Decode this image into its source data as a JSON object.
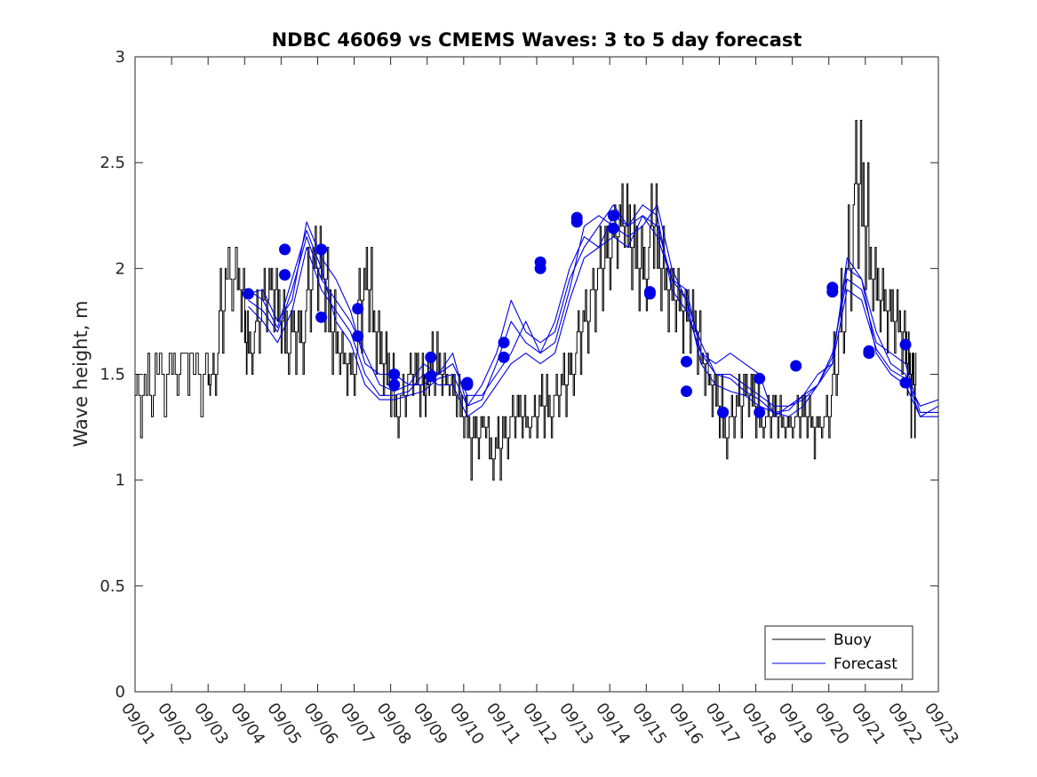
{
  "chart_data": {
    "type": "line",
    "title": "NDBC 46069 vs CMEMS Waves: 3 to 5 day forecast",
    "xlabel": "",
    "ylabel": "Wave height, m",
    "xlim": [
      0,
      22
    ],
    "ylim": [
      0,
      3
    ],
    "yticks": [
      0,
      0.5,
      1,
      1.5,
      2,
      2.5,
      3
    ],
    "yticklabels": [
      "0",
      "0.5",
      "1",
      "1.5",
      "2",
      "2.5",
      "3"
    ],
    "xticks": [
      0,
      1,
      2,
      3,
      4,
      5,
      6,
      7,
      8,
      9,
      10,
      11,
      12,
      13,
      14,
      15,
      16,
      17,
      18,
      19,
      20,
      21,
      22
    ],
    "xticklabels": [
      "09/01",
      "09/02",
      "09/03",
      "09/04",
      "09/05",
      "09/06",
      "09/07",
      "09/08",
      "09/09",
      "09/10",
      "09/11",
      "09/12",
      "09/13",
      "09/14",
      "09/15",
      "09/16",
      "09/17",
      "09/18",
      "09/19",
      "09/20",
      "09/21",
      "09/22",
      "09/23"
    ],
    "legend": {
      "location": "bottom-right",
      "entries": [
        "Buoy",
        "Forecast"
      ]
    },
    "series": [
      {
        "name": "Buoy",
        "color": "#000000",
        "x": [
          0,
          0.3,
          0.6,
          1,
          1.3,
          1.6,
          2,
          2.1,
          2.3,
          2.5,
          2.8,
          3.0,
          3.1,
          3.3,
          3.5,
          3.7,
          3.9,
          4.1,
          4.3,
          4.5,
          4.7,
          4.9,
          5.1,
          5.3,
          5.5,
          5.7,
          5.9,
          6.1,
          6.3,
          6.5,
          6.7,
          6.9,
          7.1,
          7.3,
          7.5,
          7.7,
          7.9,
          8.0,
          8.1,
          8.3,
          8.5,
          8.7,
          8.9,
          9.1,
          9.3,
          9.5,
          9.7,
          9.9,
          10.1,
          10.3,
          10.5,
          10.7,
          10.9,
          11.1,
          11.3,
          11.5,
          11.7,
          11.9,
          12.1,
          12.3,
          12.5,
          12.7,
          12.9,
          13.1,
          13.3,
          13.5,
          13.7,
          13.9,
          14.1,
          14.3,
          14.5,
          14.7,
          14.9,
          15.1,
          15.3,
          15.5,
          15.7,
          15.9,
          16.1,
          16.3,
          16.5,
          16.7,
          16.9,
          17.1,
          17.3,
          17.5,
          17.7,
          17.9,
          18.1,
          18.3,
          18.5,
          18.7,
          18.9,
          19.1,
          19.3,
          19.5,
          19.7,
          19.9,
          20.1,
          20.3,
          20.5,
          20.7,
          20.9,
          21.1,
          21.2,
          21.3
        ],
        "y": [
          1.4,
          1.4,
          1.5,
          1.5,
          1.6,
          1.5,
          1.45,
          1.5,
          1.8,
          1.95,
          1.9,
          1.65,
          1.6,
          1.75,
          1.85,
          1.9,
          1.75,
          1.6,
          1.7,
          1.65,
          1.9,
          2.0,
          1.95,
          1.7,
          1.6,
          1.55,
          1.5,
          1.85,
          1.9,
          1.7,
          1.55,
          1.45,
          1.3,
          1.4,
          1.5,
          1.45,
          1.4,
          1.45,
          1.5,
          1.5,
          1.45,
          1.4,
          1.3,
          1.2,
          1.2,
          1.25,
          1.1,
          1.15,
          1.2,
          1.3,
          1.3,
          1.25,
          1.3,
          1.35,
          1.3,
          1.4,
          1.45,
          1.5,
          1.7,
          1.75,
          1.9,
          2.0,
          2.05,
          2.15,
          2.2,
          2.1,
          2.0,
          1.95,
          2.2,
          2.0,
          1.9,
          1.85,
          1.8,
          1.75,
          1.7,
          1.55,
          1.45,
          1.35,
          1.2,
          1.3,
          1.35,
          1.4,
          1.35,
          1.25,
          1.3,
          1.3,
          1.25,
          1.25,
          1.3,
          1.3,
          1.25,
          1.25,
          1.3,
          1.5,
          1.7,
          2.0,
          2.4,
          2.2,
          1.95,
          1.85,
          1.8,
          1.75,
          1.7,
          1.55,
          1.5,
          1.45
        ],
        "y_min": [
          1.2,
          1.3,
          1.3,
          1.4,
          1.4,
          1.3,
          1.4,
          1.4,
          1.6,
          1.8,
          1.7,
          1.5,
          1.5,
          1.6,
          1.7,
          1.7,
          1.6,
          1.5,
          1.5,
          1.5,
          1.7,
          1.8,
          1.7,
          1.5,
          1.5,
          1.4,
          1.4,
          1.6,
          1.7,
          1.5,
          1.4,
          1.3,
          1.2,
          1.3,
          1.4,
          1.3,
          1.3,
          1.4,
          1.4,
          1.4,
          1.4,
          1.3,
          1.2,
          1.0,
          1.1,
          1.2,
          1.0,
          1.0,
          1.1,
          1.2,
          1.2,
          1.2,
          1.2,
          1.2,
          1.2,
          1.3,
          1.3,
          1.4,
          1.5,
          1.6,
          1.7,
          1.8,
          1.9,
          2.0,
          2.1,
          1.9,
          1.8,
          1.8,
          2.0,
          1.8,
          1.7,
          1.7,
          1.6,
          1.6,
          1.5,
          1.4,
          1.3,
          1.2,
          1.1,
          1.2,
          1.2,
          1.3,
          1.2,
          1.2,
          1.2,
          1.2,
          1.2,
          1.2,
          1.2,
          1.2,
          1.1,
          1.2,
          1.2,
          1.4,
          1.6,
          1.8,
          2.0,
          1.9,
          1.8,
          1.7,
          1.6,
          1.6,
          1.5,
          1.4,
          1.2,
          1.2
        ],
        "y_max": [
          1.5,
          1.6,
          1.6,
          1.6,
          1.6,
          1.6,
          1.5,
          1.6,
          2.0,
          2.1,
          2.0,
          1.8,
          1.7,
          1.9,
          2.0,
          2.0,
          1.9,
          1.8,
          1.8,
          1.8,
          2.1,
          2.2,
          2.1,
          1.9,
          1.7,
          1.6,
          1.6,
          2.0,
          2.1,
          1.8,
          1.7,
          1.6,
          1.4,
          1.5,
          1.6,
          1.6,
          1.5,
          1.6,
          1.7,
          1.6,
          1.5,
          1.5,
          1.4,
          1.3,
          1.3,
          1.3,
          1.2,
          1.3,
          1.3,
          1.4,
          1.4,
          1.3,
          1.4,
          1.5,
          1.4,
          1.5,
          1.6,
          1.6,
          1.8,
          1.9,
          2.0,
          2.2,
          2.2,
          2.3,
          2.4,
          2.3,
          2.2,
          2.1,
          2.4,
          2.2,
          2.0,
          2.0,
          1.9,
          1.9,
          1.8,
          1.6,
          1.5,
          1.5,
          1.3,
          1.4,
          1.5,
          1.5,
          1.5,
          1.3,
          1.4,
          1.4,
          1.3,
          1.3,
          1.4,
          1.4,
          1.3,
          1.3,
          1.4,
          1.7,
          2.0,
          2.3,
          2.7,
          2.5,
          2.1,
          2.0,
          1.9,
          1.9,
          1.8,
          1.7,
          1.6,
          1.6
        ]
      },
      {
        "name": "Forecast",
        "color": "#0000e6",
        "traces": [
          {
            "x": [
              3.1,
              3.5,
              3.9,
              4.3,
              4.7,
              5.1,
              5.5,
              5.9,
              6.3,
              6.7,
              7.1,
              7.5,
              7.9,
              8.3,
              8.7,
              9.1,
              9.5,
              9.9,
              10.3,
              10.7,
              11.1,
              11.5,
              11.9,
              12.3,
              12.7,
              13.1,
              13.5,
              13.9,
              14.3,
              14.7,
              15.1,
              15.5,
              15.9,
              16.3,
              16.7,
              17.1,
              17.5,
              17.9,
              18.3,
              18.7,
              19.1,
              19.5,
              19.9,
              20.3,
              20.7,
              21.1,
              21.5,
              22.0
            ],
            "y": [
              1.88,
              1.9,
              1.75,
              1.85,
              2.22,
              2.05,
              1.95,
              1.8,
              1.55,
              1.5,
              1.5,
              1.45,
              1.55,
              1.5,
              1.6,
              1.35,
              1.45,
              1.6,
              1.85,
              1.7,
              1.65,
              1.7,
              1.95,
              2.1,
              2.2,
              2.3,
              2.2,
              2.25,
              2.15,
              1.95,
              1.9,
              1.6,
              1.55,
              1.6,
              1.55,
              1.5,
              1.3,
              1.35,
              1.4,
              1.45,
              1.55,
              2.05,
              1.95,
              1.7,
              1.55,
              1.5,
              1.3,
              1.35
            ]
          },
          {
            "x": [
              3.1,
              3.5,
              3.9,
              4.3,
              4.7,
              5.1,
              5.5,
              5.9,
              6.3,
              6.7,
              7.1,
              7.5,
              7.9,
              8.3,
              8.7,
              9.1,
              9.5,
              9.9,
              10.3,
              10.7,
              11.1,
              11.5,
              11.9,
              12.3,
              12.7,
              13.1,
              13.5,
              13.9,
              14.3,
              14.7,
              15.1,
              15.5,
              15.9,
              16.3,
              16.7,
              17.1,
              17.5,
              17.9,
              18.3,
              18.7,
              19.1,
              19.5,
              19.9,
              20.3,
              20.7,
              21.1,
              21.5,
              22.0
            ],
            "y": [
              1.85,
              1.8,
              1.7,
              1.9,
              2.15,
              1.95,
              1.85,
              1.75,
              1.6,
              1.45,
              1.42,
              1.45,
              1.45,
              1.5,
              1.55,
              1.4,
              1.4,
              1.5,
              1.6,
              1.75,
              1.6,
              1.65,
              1.9,
              2.2,
              2.25,
              2.2,
              2.15,
              2.2,
              2.3,
              2.0,
              1.85,
              1.65,
              1.5,
              1.5,
              1.45,
              1.4,
              1.35,
              1.35,
              1.38,
              1.45,
              1.6,
              1.95,
              1.9,
              1.65,
              1.6,
              1.55,
              1.32,
              1.32
            ]
          },
          {
            "x": [
              3.1,
              3.5,
              3.9,
              4.3,
              4.7,
              5.1,
              5.5,
              5.9,
              6.3,
              6.7,
              7.1,
              7.5,
              7.9,
              8.3,
              8.7,
              9.1,
              9.5,
              9.9,
              10.3,
              10.7,
              11.1,
              11.5,
              11.9,
              12.3,
              12.7,
              13.1,
              13.5,
              13.9,
              14.3,
              14.7,
              15.1,
              15.5,
              15.9,
              16.3,
              16.7,
              17.1,
              17.5,
              17.9,
              18.3,
              18.7,
              19.1,
              19.5,
              19.9,
              20.3,
              20.7,
              21.1,
              21.5,
              22.0
            ],
            "y": [
              1.82,
              1.75,
              1.65,
              1.8,
              2.1,
              1.9,
              1.8,
              1.7,
              1.5,
              1.4,
              1.4,
              1.42,
              1.5,
              1.45,
              1.45,
              1.3,
              1.35,
              1.45,
              1.55,
              1.6,
              1.55,
              1.6,
              1.85,
              2.05,
              2.1,
              2.15,
              2.1,
              2.25,
              2.2,
              1.95,
              1.85,
              1.55,
              1.45,
              1.42,
              1.4,
              1.35,
              1.32,
              1.3,
              1.35,
              1.45,
              1.58,
              2.0,
              1.95,
              1.6,
              1.5,
              1.45,
              1.3,
              1.3
            ]
          },
          {
            "x": [
              3.1,
              3.5,
              3.9,
              4.3,
              4.7,
              5.1,
              5.5,
              5.9,
              6.3,
              6.7,
              7.1,
              7.5,
              7.9,
              8.3,
              8.7,
              9.1,
              9.5,
              9.9,
              10.3,
              10.7,
              11.1,
              11.5,
              11.9,
              12.3,
              12.7,
              13.1,
              13.5,
              13.9,
              14.3,
              14.7,
              15.1,
              15.5,
              15.9,
              16.3,
              16.7,
              17.1,
              17.5,
              17.9,
              18.3,
              18.7,
              19.1,
              19.5,
              19.9,
              20.3,
              20.7,
              21.1,
              21.5,
              22.0
            ],
            "y": [
              1.9,
              1.85,
              1.72,
              1.95,
              2.18,
              2.0,
              1.75,
              1.65,
              1.45,
              1.38,
              1.38,
              1.4,
              1.42,
              1.48,
              1.5,
              1.35,
              1.38,
              1.55,
              1.75,
              1.65,
              1.6,
              1.75,
              2.0,
              2.15,
              2.1,
              2.25,
              2.2,
              2.3,
              2.25,
              1.9,
              1.8,
              1.6,
              1.5,
              1.48,
              1.42,
              1.38,
              1.32,
              1.33,
              1.4,
              1.5,
              1.55,
              1.9,
              1.85,
              1.62,
              1.52,
              1.48,
              1.35,
              1.38
            ]
          }
        ],
        "markers": {
          "x": [
            3.1,
            4.1,
            4.1,
            5.1,
            5.1,
            6.1,
            6.1,
            7.1,
            7.1,
            8.1,
            8.1,
            9.1,
            9.1,
            10.1,
            10.1,
            11.1,
            11.1,
            12.1,
            12.1,
            13.1,
            13.1,
            14.1,
            14.1,
            15.1,
            15.1,
            16.1,
            16.1,
            17.1,
            17.1,
            18.1,
            19.1,
            19.1,
            20.1,
            20.1,
            21.1,
            21.1
          ],
          "y": [
            1.88,
            2.09,
            1.97,
            2.09,
            1.77,
            1.81,
            1.68,
            1.5,
            1.45,
            1.58,
            1.49,
            1.45,
            1.46,
            1.65,
            1.58,
            2.03,
            2.0,
            2.24,
            2.22,
            2.25,
            2.19,
            1.89,
            1.88,
            1.56,
            1.42,
            1.32,
            1.32,
            1.48,
            1.32,
            1.54,
            1.91,
            1.89,
            1.61,
            1.6,
            1.64,
            1.46
          ]
        }
      }
    ]
  }
}
